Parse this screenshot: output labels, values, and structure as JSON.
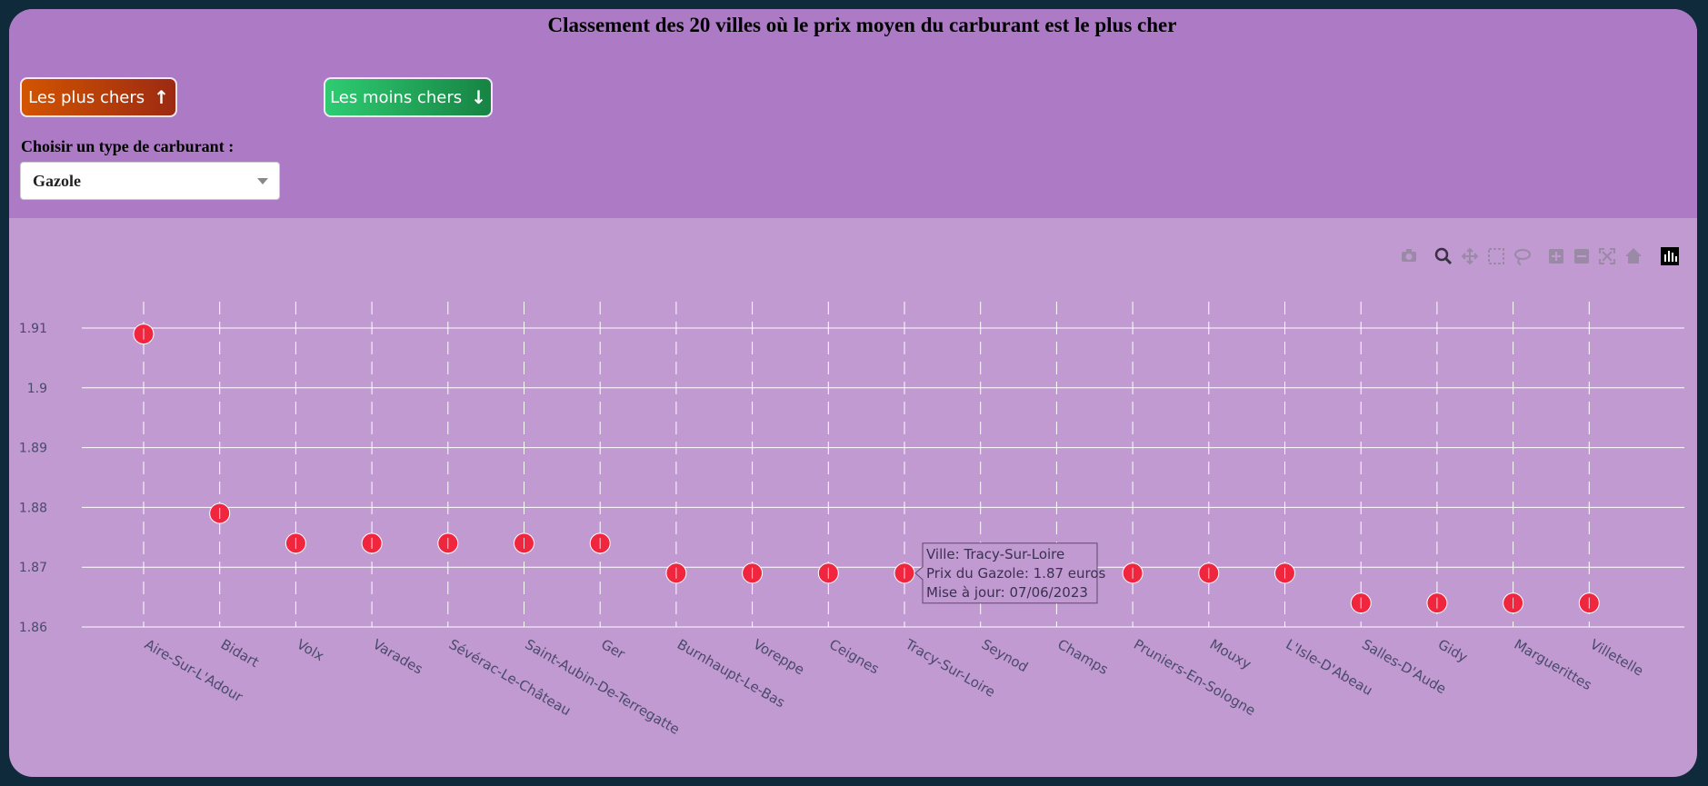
{
  "header": {
    "title": "Classement des 20 villes où le prix moyen du carburant est le plus cher",
    "btn_expensive_label": "Les plus chers",
    "btn_cheap_label": "Les moins chers",
    "fuel_label": "Choisir un type de carburant :",
    "fuel_selected": "Gazole"
  },
  "modebar": [
    "camera-icon",
    "zoom-icon",
    "pan-icon",
    "box-select-icon",
    "lasso-icon",
    "zoom-in-icon",
    "zoom-out-icon",
    "autoscale-icon",
    "reset-axes-icon",
    "plotly-logo-icon"
  ],
  "colors": {
    "marker": "#f0263f",
    "marker_line": "#ffffff",
    "grid": "#ffffff",
    "tick_text": "#4a4a6a"
  },
  "chart_data": {
    "type": "scatter",
    "title": "",
    "xlabel": "",
    "ylabel": "",
    "ylim": [
      1.86,
      1.91
    ],
    "yticks": [
      "1.86",
      "1.87",
      "1.88",
      "1.89",
      "1.9",
      "1.91"
    ],
    "grid": true,
    "categories": [
      "Aire-Sur-L'Adour",
      "Bidart",
      "Volx",
      "Varades",
      "Sévérac-Le-Château",
      "Saint-Aubin-De-Terregatte",
      "Ger",
      "Burnhaupt-Le-Bas",
      "Voreppe",
      "Ceignes",
      "Tracy-Sur-Loire",
      "Seynod",
      "Champs",
      "Pruniers-En-Sologne",
      "Mouxy",
      "L'Isle-D'Abeau",
      "Salles-D'Aude",
      "Gidy",
      "Marguerittes",
      "Villetelle"
    ],
    "values": [
      1.909,
      1.879,
      1.874,
      1.874,
      1.874,
      1.874,
      1.874,
      1.869,
      1.869,
      1.869,
      1.869,
      null,
      null,
      1.869,
      1.869,
      1.869,
      1.864,
      1.864,
      1.864,
      1.864
    ],
    "tooltip": {
      "lines": [
        "Ville: Tracy-Sur-Loire",
        "Prix du Gazole: 1.87 euros",
        "Mise à jour: 07/06/2023"
      ]
    }
  }
}
